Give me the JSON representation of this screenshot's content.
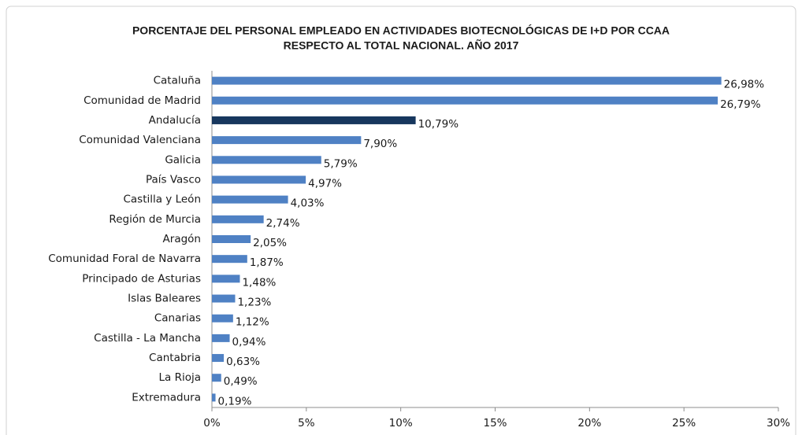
{
  "chart_data": {
    "type": "bar",
    "orientation": "horizontal",
    "title": [
      "PORCENTAJE DEL PERSONAL EMPLEADO EN ACTIVIDADES BIOTECNOLÓGICAS DE I+D POR CCAA",
      "RESPECTO AL TOTAL NACIONAL. AÑO 2017"
    ],
    "categories": [
      "Cataluña",
      "Comunidad de Madrid",
      "Andalucía",
      "Comunidad Valenciana",
      "Galicia",
      "País Vasco",
      "Castilla y León",
      "Región de Murcia",
      "Aragón",
      "Comunidad Foral de Navarra",
      "Principado de Asturias",
      "Islas Baleares",
      "Canarias",
      "Castilla - La Mancha",
      "Cantabria",
      "La Rioja",
      "Extremadura"
    ],
    "values": [
      26.98,
      26.79,
      10.79,
      7.9,
      5.79,
      4.97,
      4.03,
      2.74,
      2.05,
      1.87,
      1.48,
      1.23,
      1.12,
      0.94,
      0.63,
      0.49,
      0.19
    ],
    "value_labels": [
      "26,98%",
      "26,79%",
      "10,79%",
      "7,90%",
      "5,79%",
      "4,97%",
      "4,03%",
      "2,74%",
      "2,05%",
      "1,87%",
      "1,48%",
      "1,23%",
      "1,12%",
      "0,94%",
      "0,63%",
      "0,49%",
      "0,19%"
    ],
    "colors": [
      "#4f81c4",
      "#4f81c4",
      "#17375e",
      "#4f81c4",
      "#4f81c4",
      "#4f81c4",
      "#4f81c4",
      "#4f81c4",
      "#4f81c4",
      "#4f81c4",
      "#4f81c4",
      "#4f81c4",
      "#4f81c4",
      "#4f81c4",
      "#4f81c4",
      "#4f81c4",
      "#4f81c4"
    ],
    "xlim": [
      0,
      30
    ],
    "xticks": [
      {
        "value": 0,
        "label": "0%"
      },
      {
        "value": 5,
        "label": "5%"
      },
      {
        "value": 10,
        "label": "10%"
      },
      {
        "value": 15,
        "label": "15%"
      },
      {
        "value": 20,
        "label": "20%"
      },
      {
        "value": 25,
        "label": "25%"
      },
      {
        "value": 30,
        "label": "30%"
      }
    ],
    "grid": false
  }
}
